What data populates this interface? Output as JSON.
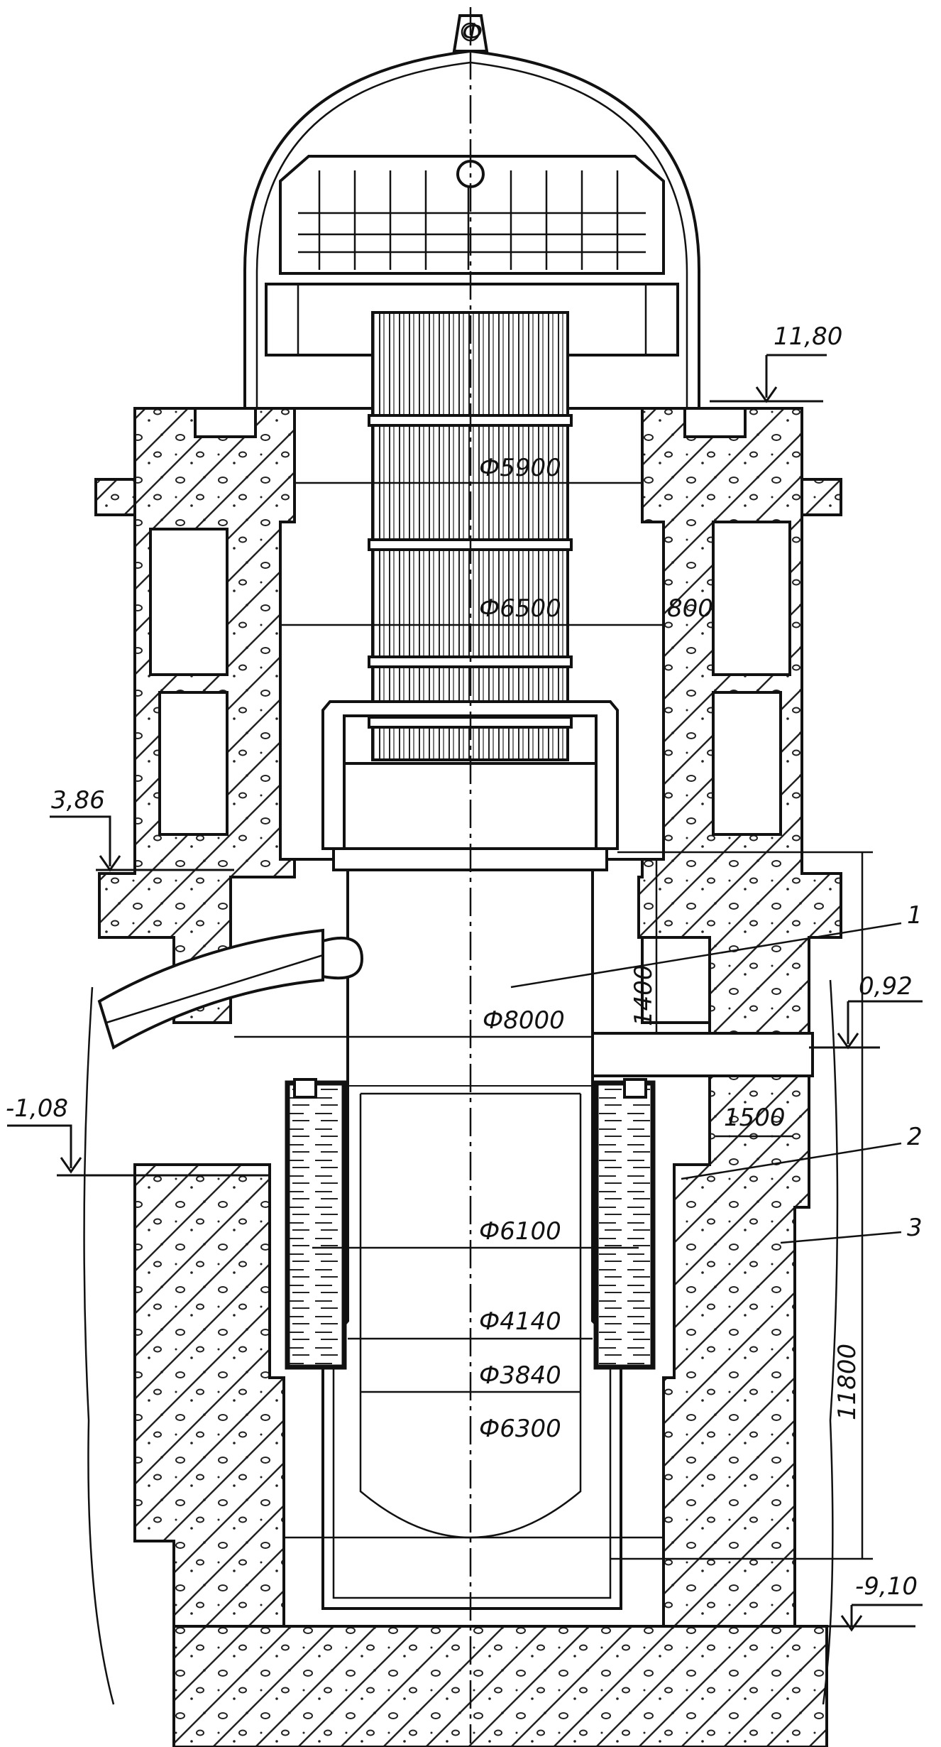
{
  "elevations": {
    "top": "11,80",
    "upper_floor": "3,86",
    "nozzle_level": "0,92",
    "lower_floor": "-1,08",
    "bottom": "-9,10"
  },
  "dimensions": {
    "d_5900": "Ф5900",
    "d_6500": "Ф6500",
    "thk_800": "800",
    "d_8000": "Ф8000",
    "h_1400": "1400",
    "w_1500": "1500",
    "d_6100": "Ф6100",
    "d_4140": "Ф4140",
    "d_3840": "Ф3840",
    "d_6300": "Ф6300",
    "h_11800": "11800"
  },
  "callouts": {
    "c1": "1",
    "c2": "2",
    "c3": "3"
  },
  "top_symbol": "Ф"
}
